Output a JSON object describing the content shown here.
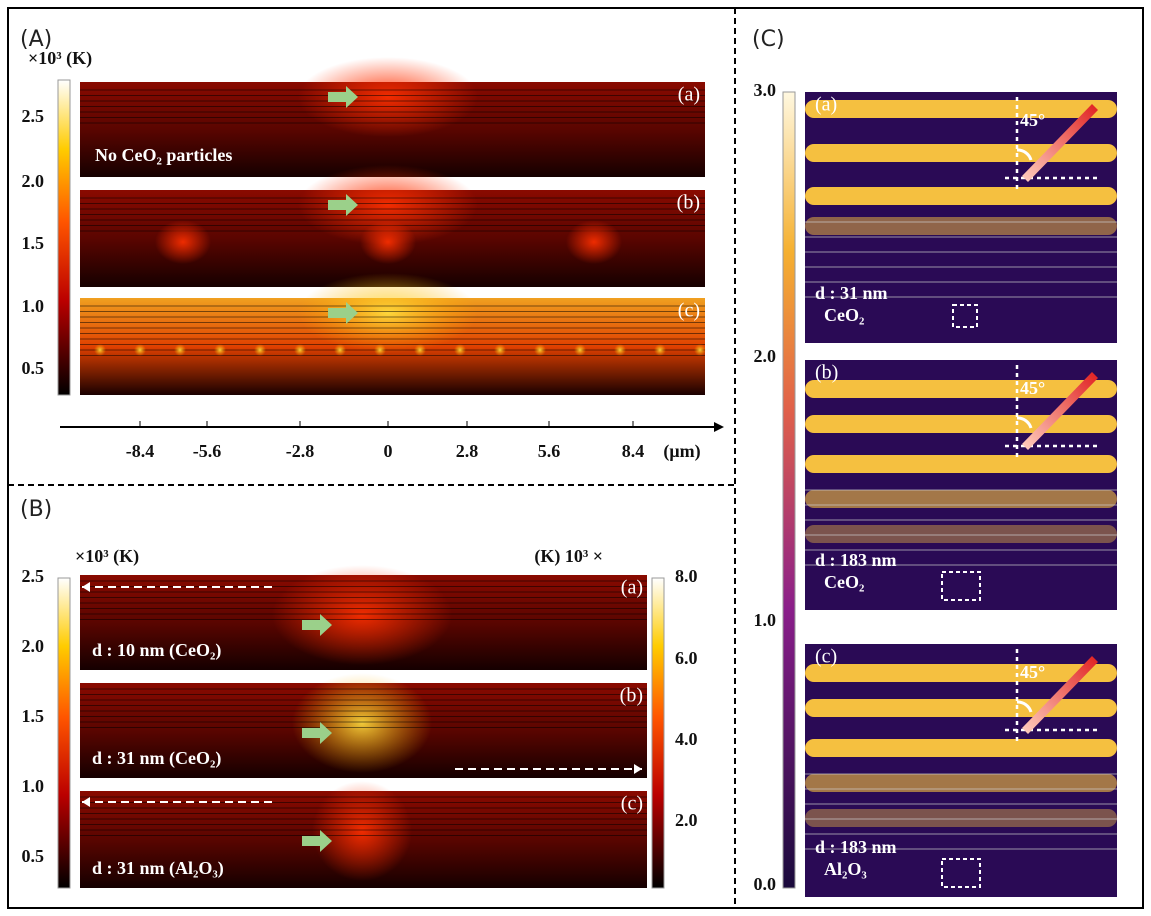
{
  "panel_a": {
    "label": "(A)",
    "unit": "×10³ (K)",
    "colorbar_ticks": [
      "2.5",
      "2.0",
      "1.5",
      "1.0",
      "0.5"
    ],
    "images": [
      {
        "label": "(a)",
        "caption": "No CeO₂ particles"
      },
      {
        "label": "(b)"
      },
      {
        "label": "(c)"
      }
    ],
    "axis_ticks": [
      "-8.4",
      "-5.6",
      "-2.8",
      "0",
      "2.8",
      "5.6",
      "8.4"
    ],
    "axis_unit": "(μm)"
  },
  "panel_b": {
    "label": "(B)",
    "left_unit": "×10³ (K)",
    "right_unit": "(K) 10³ ×",
    "left_ticks": [
      "2.5",
      "2.0",
      "1.5",
      "1.0",
      "0.5"
    ],
    "right_ticks": [
      "8.0",
      "6.0",
      "4.0",
      "2.0"
    ],
    "images": [
      {
        "label": "(a)",
        "caption": "d : 10 nm (CeO₂)"
      },
      {
        "label": "(b)",
        "caption": "d : 31 nm (CeO₂)"
      },
      {
        "label": "(c)",
        "caption": "d : 31 nm (Al₂O₃)"
      }
    ]
  },
  "panel_c": {
    "label": "(C)",
    "colorbar_ticks": [
      "3.0",
      "2.0",
      "1.0",
      "0.0"
    ],
    "images": [
      {
        "label": "(a)",
        "angle": "45°",
        "caption_1": "d : 31 nm",
        "caption_2": "CeO₂"
      },
      {
        "label": "(b)",
        "angle": "45°",
        "caption_1": "d : 183 nm",
        "caption_2": "CeO₂"
      },
      {
        "label": "(c)",
        "angle": "45°",
        "caption_1": "d : 183 nm",
        "caption_2": "Al₂O₃"
      }
    ]
  }
}
